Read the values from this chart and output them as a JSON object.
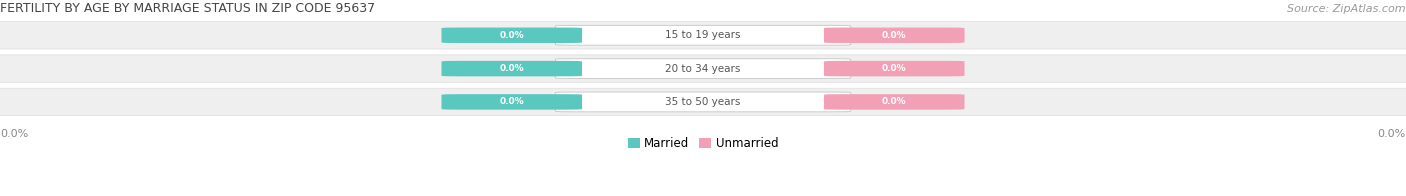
{
  "title": "FERTILITY BY AGE BY MARRIAGE STATUS IN ZIP CODE 95637",
  "source": "Source: ZipAtlas.com",
  "age_groups": [
    "15 to 19 years",
    "20 to 34 years",
    "35 to 50 years"
  ],
  "married_values": [
    0.0,
    0.0,
    0.0
  ],
  "unmarried_values": [
    0.0,
    0.0,
    0.0
  ],
  "married_color": "#5bc8c0",
  "unmarried_color": "#f2a0b5",
  "row_bg_color": "#efefef",
  "row_edge_color": "#dddddd",
  "title_color": "#444444",
  "source_color": "#999999",
  "value_text_color": "#ffffff",
  "category_text_color": "#555555",
  "edge_label_color": "#888888",
  "figsize": [
    14.06,
    1.96
  ],
  "dpi": 100
}
